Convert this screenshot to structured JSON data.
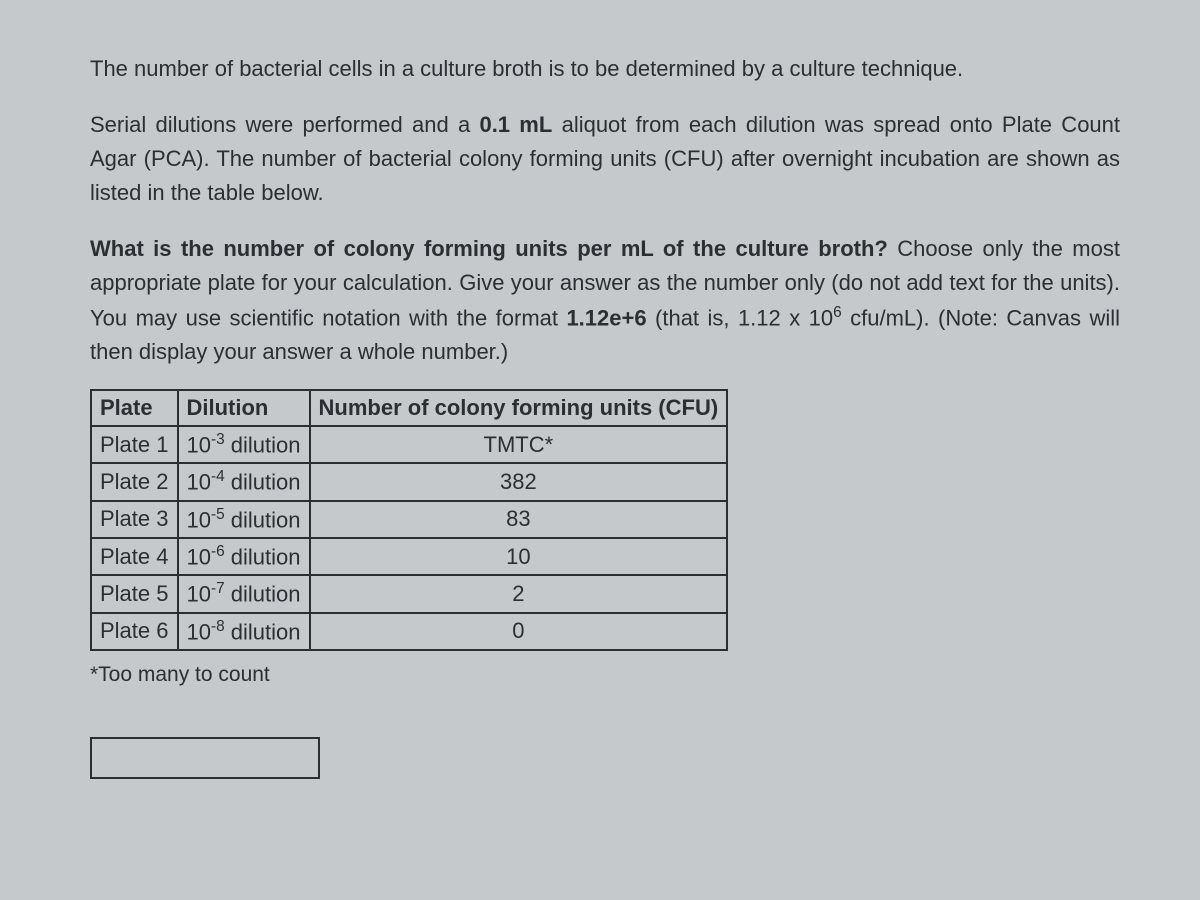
{
  "paragraphs": {
    "p1": "The number of bacterial cells in a culture broth is to be determined by a culture technique.",
    "p2_a": "Serial dilutions were performed and a ",
    "p2_b_bold": "0.1 mL",
    "p2_c": " aliquot from each dilution was spread onto Plate Count Agar (PCA). The number of bacterial colony forming units (CFU) after overnight incubation are shown as listed in the table below.",
    "p3_a_bold": "What is the number of colony forming units per mL of the culture broth?",
    "p3_b": " Choose only the most appropriate plate for your calculation. Give your answer as the number only (do not add text for the units). You may use scientific notation with the format ",
    "p3_c_bold": "1.12e+6",
    "p3_d": " (that is, 1.12 x 10",
    "p3_e_sup": "6",
    "p3_f": " cfu/mL). (Note: Canvas will then display your answer a whole number.)"
  },
  "table": {
    "headers": {
      "plate": "Plate",
      "dilution": "Dilution",
      "cfu": "Number of colony forming units (CFU)"
    },
    "rows": [
      {
        "plate": "Plate 1",
        "base": "10",
        "exp": "-3",
        "suffix": " dilution",
        "cfu": "TMTC*"
      },
      {
        "plate": "Plate 2",
        "base": "10",
        "exp": "-4",
        "suffix": " dilution",
        "cfu": "382"
      },
      {
        "plate": "Plate 3",
        "base": "10",
        "exp": "-5",
        "suffix": " dilution",
        "cfu": "83"
      },
      {
        "plate": "Plate 4",
        "base": "10",
        "exp": "-6",
        "suffix": " dilution",
        "cfu": "10"
      },
      {
        "plate": "Plate 5",
        "base": "10",
        "exp": "-7",
        "suffix": " dilution",
        "cfu": "2"
      },
      {
        "plate": "Plate 6",
        "base": "10",
        "exp": "-8",
        "suffix": " dilution",
        "cfu": "0"
      }
    ]
  },
  "footnote": "*Too many to count",
  "answer_value": "",
  "colors": {
    "background": "#c5c9cc",
    "text": "#2b2f33",
    "border": "#2b2f33"
  }
}
